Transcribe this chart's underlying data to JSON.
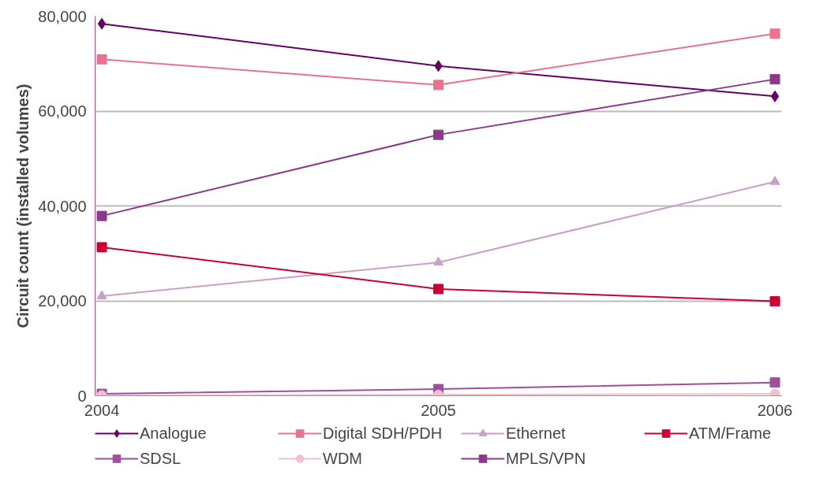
{
  "chart_data": {
    "type": "line",
    "ylabel": "Circuit count (installed volumes)",
    "categories": [
      "2004",
      "2005",
      "2006"
    ],
    "ylim": [
      0,
      80000
    ],
    "yticks": [
      {
        "value": 0,
        "label": "0"
      },
      {
        "value": 20000,
        "label": "20,000"
      },
      {
        "value": 40000,
        "label": "40,000"
      },
      {
        "value": 60000,
        "label": "60,000"
      },
      {
        "value": 80000,
        "label": "80,000"
      }
    ],
    "grid": "y",
    "legend": "bottom",
    "series": [
      {
        "name": "Analogue",
        "color": "#660066",
        "marker": "diamond",
        "values": [
          78400,
          69500,
          63100
        ]
      },
      {
        "name": "Digital SDH/PDH",
        "color": "#e8728f",
        "marker": "square",
        "values": [
          70900,
          65500,
          76300
        ]
      },
      {
        "name": "Ethernet",
        "color": "#c8a0c8",
        "marker": "triangle",
        "values": [
          21000,
          28100,
          45100
        ]
      },
      {
        "name": "ATM/Frame",
        "color": "#cc0033",
        "marker": "square",
        "values": [
          31300,
          22500,
          19900
        ]
      },
      {
        "name": "SDSL",
        "color": "#9e4f9e",
        "marker": "square",
        "values": [
          400,
          1400,
          2800
        ]
      },
      {
        "name": "WDM",
        "color": "#f0c0cc",
        "marker": "circle",
        "values": [
          100,
          200,
          400
        ]
      },
      {
        "name": "MPLS/VPN",
        "color": "#8b3a8b",
        "marker": "square",
        "values": [
          37900,
          55000,
          66700
        ]
      }
    ]
  }
}
